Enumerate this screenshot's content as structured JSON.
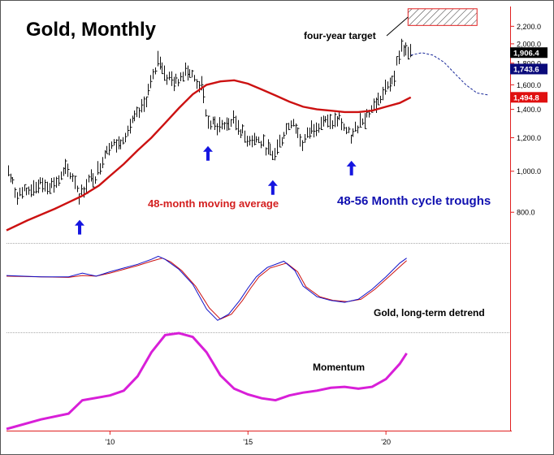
{
  "chart_data": {
    "type": "line",
    "title": "Gold, Monthly",
    "x_axis": {
      "range": [
        2006.25,
        2024.5
      ],
      "ticks": [
        {
          "value": 2010,
          "label": "'10"
        },
        {
          "value": 2015,
          "label": "'15"
        },
        {
          "value": 2020,
          "label": "'20"
        }
      ]
    },
    "y_axis": {
      "scale": "log",
      "range": [
        680,
        2450
      ],
      "ticks": [
        {
          "value": 800,
          "label": "800.0"
        },
        {
          "value": 1000,
          "label": "1,000.0"
        },
        {
          "value": 1200,
          "label": "1,200.0"
        },
        {
          "value": 1400,
          "label": "1,400.0"
        },
        {
          "value": 1600,
          "label": "1,600.0"
        },
        {
          "value": 1800,
          "label": "1,800.0"
        },
        {
          "value": 2000,
          "label": "2,000.0"
        },
        {
          "value": 2200,
          "label": "2,200.0"
        }
      ]
    },
    "value_tags": [
      {
        "value": 1906.4,
        "label": "1,906.4",
        "color": "#000000"
      },
      {
        "value": 1743.6,
        "label": "1,743.6",
        "color": "#0a0a7a"
      },
      {
        "value": 1494.8,
        "label": "1,494.8",
        "color": "#e01010"
      }
    ],
    "price_anchors": [
      [
        2006.3,
        1000
      ],
      [
        2006.6,
        880
      ],
      [
        2007.0,
        900
      ],
      [
        2007.4,
        930
      ],
      [
        2007.9,
        930
      ],
      [
        2008.2,
        960
      ],
      [
        2008.4,
        1010
      ],
      [
        2008.7,
        960
      ],
      [
        2008.9,
        870
      ],
      [
        2009.2,
        950
      ],
      [
        2009.5,
        980
      ],
      [
        2009.9,
        1150
      ],
      [
        2010.3,
        1160
      ],
      [
        2010.8,
        1300
      ],
      [
        2011.2,
        1420
      ],
      [
        2011.6,
        1700
      ],
      [
        2011.75,
        1870
      ],
      [
        2012.0,
        1680
      ],
      [
        2012.4,
        1620
      ],
      [
        2012.75,
        1760
      ],
      [
        2013.0,
        1670
      ],
      [
        2013.3,
        1580
      ],
      [
        2013.55,
        1300
      ],
      [
        2013.9,
        1280
      ],
      [
        2014.2,
        1290
      ],
      [
        2014.5,
        1320
      ],
      [
        2014.9,
        1200
      ],
      [
        2015.3,
        1190
      ],
      [
        2015.6,
        1150
      ],
      [
        2015.9,
        1080
      ],
      [
        2016.3,
        1230
      ],
      [
        2016.6,
        1330
      ],
      [
        2016.95,
        1160
      ],
      [
        2017.3,
        1260
      ],
      [
        2017.7,
        1320
      ],
      [
        2017.95,
        1290
      ],
      [
        2018.3,
        1330
      ],
      [
        2018.6,
        1230
      ],
      [
        2018.75,
        1200
      ],
      [
        2019.0,
        1300
      ],
      [
        2019.45,
        1400
      ],
      [
        2019.8,
        1490
      ],
      [
        2020.1,
        1600
      ],
      [
        2020.3,
        1700
      ],
      [
        2020.55,
        1980
      ],
      [
        2020.75,
        1900
      ],
      [
        2020.9,
        1880
      ]
    ],
    "series": [
      {
        "name": "48-month moving average",
        "color": "#cc1111",
        "points": [
          [
            2006.25,
            725
          ],
          [
            2007.0,
            765
          ],
          [
            2008.0,
            815
          ],
          [
            2009.0,
            875
          ],
          [
            2009.6,
            925
          ],
          [
            2010.0,
            975
          ],
          [
            2010.5,
            1040
          ],
          [
            2011.0,
            1120
          ],
          [
            2011.5,
            1200
          ],
          [
            2012.0,
            1300
          ],
          [
            2012.5,
            1410
          ],
          [
            2013.0,
            1520
          ],
          [
            2013.5,
            1600
          ],
          [
            2014.0,
            1630
          ],
          [
            2014.5,
            1640
          ],
          [
            2015.0,
            1610
          ],
          [
            2015.5,
            1560
          ],
          [
            2016.0,
            1510
          ],
          [
            2016.5,
            1460
          ],
          [
            2017.0,
            1420
          ],
          [
            2017.5,
            1400
          ],
          [
            2018.0,
            1390
          ],
          [
            2018.5,
            1380
          ],
          [
            2019.0,
            1380
          ],
          [
            2019.5,
            1390
          ],
          [
            2020.0,
            1420
          ],
          [
            2020.5,
            1450
          ],
          [
            2020.9,
            1494.8
          ]
        ]
      },
      {
        "name": "Gold, long-term detrend",
        "color": "#1010c8",
        "points": [
          [
            2006.25,
            0.32
          ],
          [
            2007.5,
            0.3
          ],
          [
            2008.5,
            0.3
          ],
          [
            2009.0,
            0.36
          ],
          [
            2009.5,
            0.31
          ],
          [
            2010.0,
            0.38
          ],
          [
            2010.5,
            0.44
          ],
          [
            2011.0,
            0.5
          ],
          [
            2011.5,
            0.58
          ],
          [
            2011.75,
            0.63
          ],
          [
            2012.0,
            0.58
          ],
          [
            2012.5,
            0.42
          ],
          [
            2013.0,
            0.18
          ],
          [
            2013.5,
            -0.22
          ],
          [
            2013.9,
            -0.4
          ],
          [
            2014.3,
            -0.3
          ],
          [
            2014.7,
            -0.08
          ],
          [
            2015.0,
            0.12
          ],
          [
            2015.3,
            0.3
          ],
          [
            2015.7,
            0.45
          ],
          [
            2016.3,
            0.55
          ],
          [
            2016.7,
            0.4
          ],
          [
            2017.0,
            0.15
          ],
          [
            2017.5,
            -0.02
          ],
          [
            2018.0,
            -0.08
          ],
          [
            2018.5,
            -0.11
          ],
          [
            2019.0,
            -0.06
          ],
          [
            2019.5,
            0.1
          ],
          [
            2020.0,
            0.3
          ],
          [
            2020.5,
            0.52
          ],
          [
            2020.75,
            0.6
          ]
        ]
      },
      {
        "name": "Gold, long-term detrend (signal)",
        "color": "#cc1111",
        "points": [
          [
            2006.25,
            0.31
          ],
          [
            2007.5,
            0.3
          ],
          [
            2008.5,
            0.29
          ],
          [
            2009.0,
            0.32
          ],
          [
            2009.5,
            0.31
          ],
          [
            2010.0,
            0.36
          ],
          [
            2010.5,
            0.42
          ],
          [
            2011.0,
            0.48
          ],
          [
            2011.5,
            0.55
          ],
          [
            2011.9,
            0.6
          ],
          [
            2012.2,
            0.54
          ],
          [
            2012.6,
            0.4
          ],
          [
            2013.1,
            0.15
          ],
          [
            2013.6,
            -0.2
          ],
          [
            2014.0,
            -0.38
          ],
          [
            2014.4,
            -0.3
          ],
          [
            2014.8,
            -0.08
          ],
          [
            2015.1,
            0.12
          ],
          [
            2015.4,
            0.3
          ],
          [
            2015.8,
            0.44
          ],
          [
            2016.4,
            0.52
          ],
          [
            2016.8,
            0.38
          ],
          [
            2017.1,
            0.14
          ],
          [
            2017.6,
            -0.02
          ],
          [
            2018.1,
            -0.08
          ],
          [
            2018.6,
            -0.1
          ],
          [
            2019.1,
            -0.06
          ],
          [
            2019.6,
            0.1
          ],
          [
            2020.1,
            0.3
          ],
          [
            2020.6,
            0.5
          ],
          [
            2020.75,
            0.56
          ]
        ]
      },
      {
        "name": "Momentum",
        "color": "#d81fd8",
        "points": [
          [
            2006.25,
            0.0
          ],
          [
            2007.5,
            0.1
          ],
          [
            2008.5,
            0.16
          ],
          [
            2009.0,
            0.3
          ],
          [
            2010.0,
            0.35
          ],
          [
            2010.5,
            0.4
          ],
          [
            2011.0,
            0.55
          ],
          [
            2011.5,
            0.8
          ],
          [
            2012.0,
            0.98
          ],
          [
            2012.5,
            1.0
          ],
          [
            2013.0,
            0.96
          ],
          [
            2013.5,
            0.8
          ],
          [
            2014.0,
            0.56
          ],
          [
            2014.5,
            0.42
          ],
          [
            2015.0,
            0.36
          ],
          [
            2015.5,
            0.32
          ],
          [
            2016.0,
            0.3
          ],
          [
            2016.5,
            0.35
          ],
          [
            2017.0,
            0.38
          ],
          [
            2017.5,
            0.4
          ],
          [
            2018.0,
            0.43
          ],
          [
            2018.5,
            0.44
          ],
          [
            2019.0,
            0.42
          ],
          [
            2019.5,
            0.44
          ],
          [
            2020.0,
            0.52
          ],
          [
            2020.5,
            0.68
          ],
          [
            2020.75,
            0.79
          ]
        ]
      },
      {
        "name": "projection",
        "color": "#1a2a9a",
        "style": "dashed",
        "points": [
          [
            2020.9,
            1880
          ],
          [
            2021.3,
            1905
          ],
          [
            2021.7,
            1880
          ],
          [
            2022.1,
            1810
          ],
          [
            2022.5,
            1700
          ],
          [
            2022.9,
            1600
          ],
          [
            2023.3,
            1530
          ],
          [
            2023.7,
            1515
          ]
        ]
      }
    ],
    "target_box": {
      "x": [
        2020.8,
        2023.3
      ],
      "y": [
        2210,
        2420
      ]
    },
    "arrows_at": [
      2008.9,
      2013.55,
      2015.9,
      2018.75
    ],
    "annotations": [
      {
        "text": "four-year target",
        "color": "#000000"
      },
      {
        "text": "48-month moving average",
        "color": "#d42020"
      },
      {
        "text": "48-56 Month cycle troughs",
        "color": "#1010b0"
      },
      {
        "text": "Gold, long-term detrend",
        "color": "#000000"
      },
      {
        "text": "Momentum",
        "color": "#000000"
      }
    ]
  }
}
